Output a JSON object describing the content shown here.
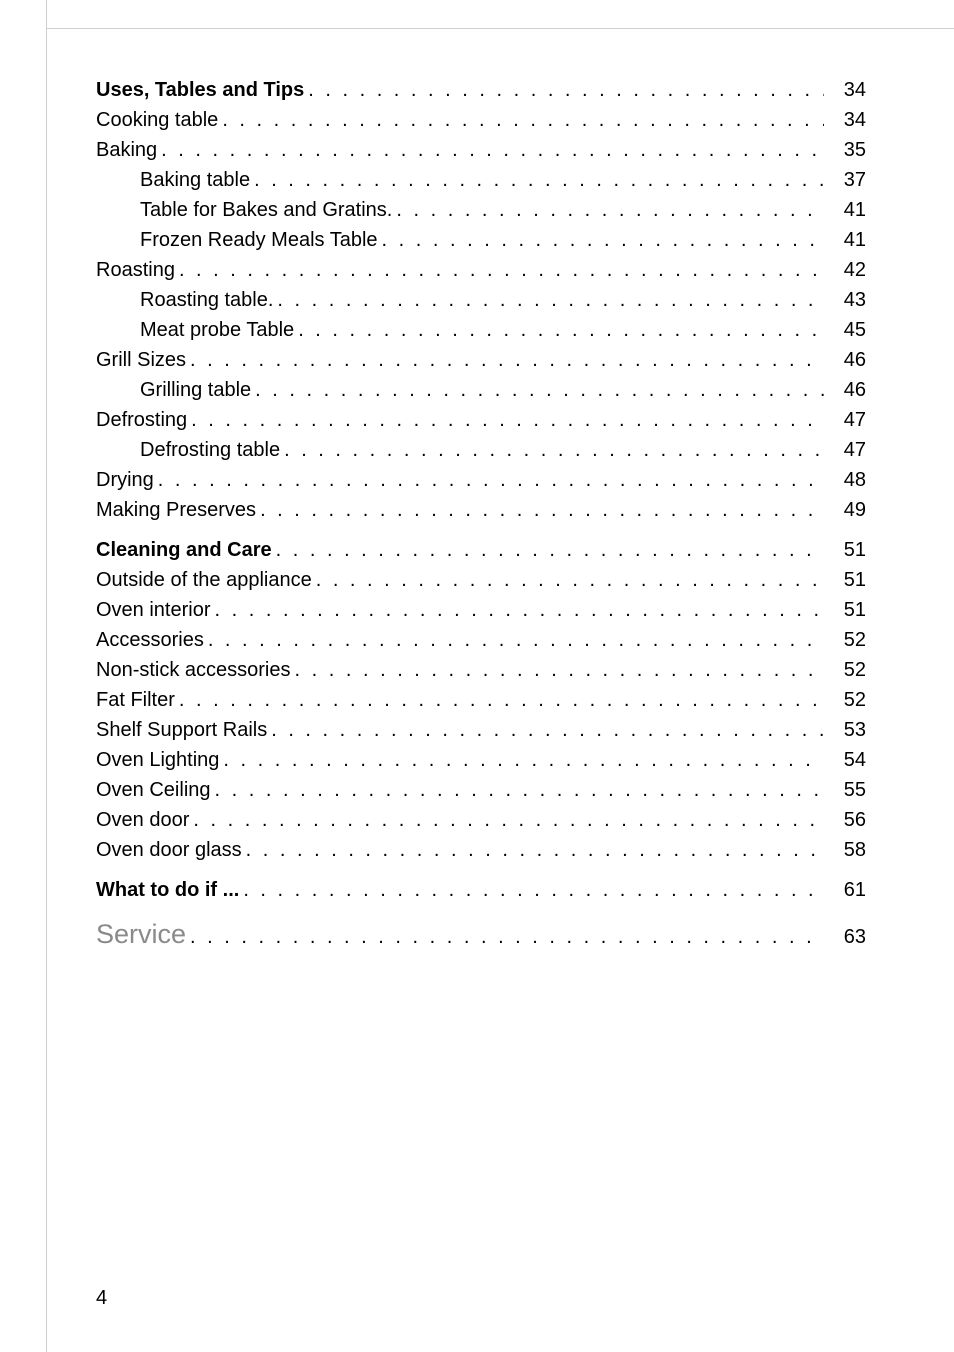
{
  "page_number": "4",
  "border_color": "#cfcfcf",
  "text_color": "#000000",
  "muted_color": "#8a8a8a",
  "toc": [
    {
      "label": "Uses, Tables and Tips",
      "page": "34",
      "level": 0,
      "bold": true
    },
    {
      "label": "Cooking table",
      "page": "34",
      "level": 1
    },
    {
      "label": "Baking",
      "page": "35",
      "level": 1
    },
    {
      "label": "Baking table",
      "page": "37",
      "level": 2
    },
    {
      "label": "Table for Bakes and Gratins.",
      "page": "41",
      "level": 2
    },
    {
      "label": "Frozen Ready Meals Table",
      "page": "41",
      "level": 2
    },
    {
      "label": "Roasting",
      "page": "42",
      "level": 1
    },
    {
      "label": "Roasting table.",
      "page": "43",
      "level": 2
    },
    {
      "label": "Meat probe Table",
      "page": "45",
      "level": 2
    },
    {
      "label": "Grill Sizes",
      "page": "46",
      "level": 1
    },
    {
      "label": "Grilling table",
      "page": "46",
      "level": 2
    },
    {
      "label": "Defrosting",
      "page": "47",
      "level": 1
    },
    {
      "label": "Defrosting table",
      "page": "47",
      "level": 2
    },
    {
      "label": "Drying",
      "page": "48",
      "level": 1
    },
    {
      "label": "Making Preserves",
      "page": "49",
      "level": 1
    },
    {
      "gap": true
    },
    {
      "label": "Cleaning and Care",
      "page": "51",
      "level": 0,
      "bold": true
    },
    {
      "label": "Outside of the appliance",
      "page": "51",
      "level": 1
    },
    {
      "label": "Oven interior",
      "page": "51",
      "level": 1
    },
    {
      "label": "Accessories",
      "page": "52",
      "level": 1
    },
    {
      "label": "Non-stick accessories",
      "page": "52",
      "level": 1
    },
    {
      "label": "Fat Filter",
      "page": "52",
      "level": 1
    },
    {
      "label": "Shelf Support Rails",
      "page": "53",
      "level": 1
    },
    {
      "label": "Oven Lighting",
      "page": "54",
      "level": 1
    },
    {
      "label": "Oven Ceiling",
      "page": "55",
      "level": 1
    },
    {
      "label": "Oven door",
      "page": "56",
      "level": 1
    },
    {
      "label": "Oven door glass",
      "page": "58",
      "level": 1
    },
    {
      "gap": true
    },
    {
      "label": "What to do if ...",
      "page": "61",
      "level": 0,
      "bold": true
    },
    {
      "gap": true
    },
    {
      "label": "Service",
      "page": "63",
      "level": 0,
      "service": true
    }
  ]
}
